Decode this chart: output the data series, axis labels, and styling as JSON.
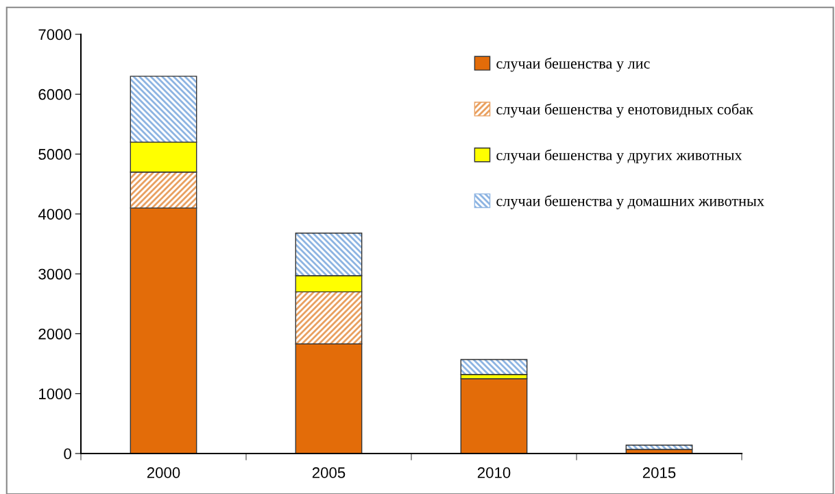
{
  "chart_data": {
    "type": "bar",
    "stacked": true,
    "categories": [
      "2000",
      "2005",
      "2010",
      "2015"
    ],
    "series": [
      {
        "name": "случаи бешенства у лис",
        "color": "#e36c09",
        "values": [
          4100,
          1830,
          1250,
          70
        ]
      },
      {
        "name": "случаи бешенства у енотовидных собак",
        "color": "#e9a060",
        "values": [
          600,
          870,
          0,
          0
        ]
      },
      {
        "name": "случаи бешенства у других животных",
        "color": "#ffff00",
        "values": [
          500,
          270,
          70,
          0
        ]
      },
      {
        "name": "случаи бешенства у домашних животных",
        "color": "#8db4e2",
        "values": [
          1100,
          710,
          250,
          70
        ]
      }
    ],
    "ylim": [
      0,
      7000
    ],
    "yticks": [
      0,
      1000,
      2000,
      3000,
      4000,
      5000,
      6000,
      7000
    ],
    "grid": false,
    "legend": "top right"
  }
}
